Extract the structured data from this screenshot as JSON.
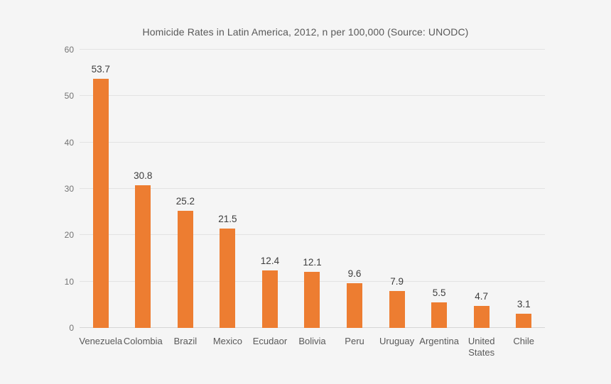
{
  "chart_data": {
    "type": "bar",
    "title": "Homicide Rates in Latin America, 2012, n per 100,000 (Source: UNODC)",
    "categories": [
      "Venezuela",
      "Colombia",
      "Brazil",
      "Mexico",
      "Ecudaor",
      "Bolivia",
      "Peru",
      "Uruguay",
      "Argentina",
      "United States",
      "Chile"
    ],
    "values": [
      53.7,
      30.8,
      25.2,
      21.5,
      12.4,
      12.1,
      9.6,
      7.9,
      5.5,
      4.7,
      3.1
    ],
    "data_labels": [
      "53.7",
      "30.8",
      "25.2",
      "21.5",
      "12.4",
      "12.1",
      "9.6",
      "7.9",
      "5.5",
      "4.7",
      "3.1"
    ],
    "xlabel": "",
    "ylabel": "",
    "ylim": [
      0,
      60
    ],
    "yticks": [
      0,
      10,
      20,
      30,
      40,
      50,
      60
    ],
    "grid": true,
    "legend": "none",
    "bar_color": "#ed7d31",
    "background_color": "#f5f5f5",
    "gridline_color": "#e3e3e3",
    "axis_line_color": "#d6d6d6",
    "title_color": "#595959",
    "tick_label_color": "#737373",
    "data_label_color": "#3d3d3d",
    "category_label_color": "#595959"
  }
}
